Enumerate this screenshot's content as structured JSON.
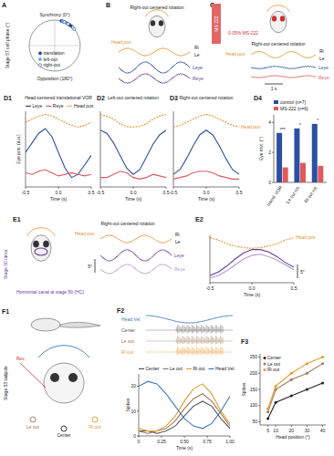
{
  "panel_labels": [
    "A",
    "B",
    "C",
    "D1",
    "D2",
    "D3",
    "D4",
    "E1",
    "E2",
    "F1",
    "F2",
    "F3"
  ],
  "A": {
    "side_label": "Stage 57 cell phase (°)",
    "top": "Synchrony (0°)",
    "bottom": "Opposition (180°)"
  },
  "B": {
    "title": "Right-out centered rotation",
    "head": "Head pos",
    "ri": "Ri",
    "le": "Le",
    "leye": "Leye",
    "reye": "Reye"
  },
  "C": {
    "tag": "MS 222",
    "dose": "0.05% MS-222",
    "title": "Right-out centered rotation",
    "head": "Head pos",
    "ri": "Ri",
    "le": "Le",
    "leye": "Leye",
    "reye": "Reye",
    "scale": "1 s"
  },
  "E": {
    "side_label": "Stage 50 larva",
    "canal": "Horizontal canal at stage 50 (HC)",
    "title": "Right-out centered rotation",
    "head": "Head pos",
    "ri": "Ri",
    "le": "Le",
    "leye": "Leye",
    "reye": "Reye",
    "scale": "5°"
  },
  "F": {
    "side_label": "Stage 53 tadpole",
    "le": "Le out",
    "center": "Center",
    "ri": "Ri out",
    "rec": "Rec",
    "raw_labels": [
      "Head Vel.",
      "Center",
      "Le out",
      "Ri out"
    ]
  },
  "chart_data": [
    {
      "type": "polar",
      "legend": "bottom-left",
      "series": [
        {
          "name": "translation",
          "color": "#1f3f8f",
          "marker": "circle",
          "values": [
            15,
            20,
            28,
            35,
            40
          ]
        },
        {
          "name": "left-out",
          "color": "#6fa8dc",
          "marker": "circle",
          "values": [
            18,
            25,
            31
          ]
        },
        {
          "name": "right-out",
          "color": "#1f3f8f",
          "marker": "ring",
          "values": [
            22,
            32,
            45,
            50
          ]
        }
      ]
    },
    {
      "type": "line",
      "title": "Head-centered translational VOR",
      "x_label": "Time (s)",
      "y_label": "Eye pos. (a.u.)",
      "legend": "top",
      "tick_labels": "x",
      "x": [
        -0.5,
        -0.4,
        -0.3,
        -0.2,
        -0.1,
        0,
        0.1,
        0.2,
        0.3,
        0.4,
        0.5
      ],
      "xlim": [
        -0.5,
        0.5
      ],
      "xticks": [
        -0.5,
        {
          "value": 0,
          "label": "0.0"
        },
        0.5
      ],
      "ylim": [
        -1,
        1.4
      ],
      "series": [
        {
          "name": "Leye",
          "color": "#2c4ea3",
          "values": [
            0.1,
            0.4,
            0.7,
            0.85,
            0.6,
            0.1,
            -0.4,
            -0.7,
            -0.6,
            -0.3,
            0.0
          ]
        },
        {
          "name": "Reye",
          "color": "#e05a5a",
          "values": [
            -0.55,
            -0.6,
            -0.5,
            -0.45,
            -0.55,
            -0.65,
            -0.6,
            -0.55,
            -0.6,
            -0.65,
            -0.6
          ]
        },
        {
          "name": "Head pos",
          "color": "#e8912d",
          "line_style": "dashed",
          "values": [
            1.05,
            1.15,
            1.25,
            1.3,
            1.25,
            1.15,
            1.05,
            0.95,
            0.9,
            0.95,
            1.05
          ]
        }
      ]
    },
    {
      "type": "line",
      "title": "Left-out centered rotation",
      "x_label": "Time (s)",
      "tick_labels": "x",
      "x": [
        -0.5,
        -0.4,
        -0.3,
        -0.2,
        -0.1,
        0,
        0.1,
        0.2,
        0.3,
        0.4,
        0.5
      ],
      "xlim": [
        -0.5,
        0.5
      ],
      "xticks": [
        -0.5,
        {
          "value": 0,
          "label": "0.0"
        },
        0.5
      ],
      "ylim": [
        -1,
        1.4
      ],
      "series": [
        {
          "color": "#2c4ea3",
          "values": [
            0.8,
            0.7,
            0.4,
            0.0,
            -0.4,
            -0.6,
            -0.45,
            -0.05,
            0.35,
            0.65,
            0.8
          ]
        },
        {
          "color": "#e05a5a",
          "values": [
            -0.7,
            -0.7,
            -0.6,
            -0.5,
            -0.55,
            -0.7,
            -0.75,
            -0.7,
            -0.6,
            -0.65,
            -0.7
          ]
        },
        {
          "color": "#e8912d",
          "line_style": "dashed",
          "values": [
            1.3,
            1.25,
            1.15,
            1.0,
            0.92,
            0.9,
            0.92,
            1.0,
            1.15,
            1.25,
            1.3
          ]
        }
      ]
    },
    {
      "type": "line",
      "title": "Right-out centered rotation",
      "x_label": "Time (s)",
      "tick_labels": "x",
      "x": [
        -0.5,
        -0.4,
        -0.3,
        -0.2,
        -0.1,
        0,
        0.1,
        0.2,
        0.3,
        0.4,
        0.5
      ],
      "xlim": [
        -0.5,
        0.5
      ],
      "xticks": [
        -0.5,
        {
          "value": 0,
          "label": "0.0"
        },
        0.5
      ],
      "ylim": [
        -1,
        1.4
      ],
      "series": [
        {
          "color": "#2c4ea3",
          "values": [
            -0.6,
            -0.45,
            -0.1,
            0.3,
            0.65,
            0.8,
            0.65,
            0.3,
            -0.1,
            -0.45,
            -0.6
          ]
        },
        {
          "color": "#e05a5a",
          "values": [
            -0.75,
            -0.7,
            -0.65,
            -0.55,
            -0.5,
            -0.5,
            -0.55,
            -0.65,
            -0.7,
            -0.75,
            -0.75
          ]
        },
        {
          "name": "Head pos",
          "color": "#e8912d",
          "line_style": "dashed",
          "values": [
            0.9,
            0.95,
            1.05,
            1.15,
            1.25,
            1.3,
            1.25,
            1.15,
            1.05,
            0.95,
            0.9
          ]
        }
      ]
    },
    {
      "type": "bar",
      "y_label": "Eye mvt. (°)",
      "legend": "top",
      "categories": [
        "transl. VOR",
        "Le out rot.",
        "Ri out rot."
      ],
      "ylim": [
        0,
        4.5
      ],
      "yticks": [
        0,
        2,
        4
      ],
      "annotations": [
        "***",
        "*",
        "*"
      ],
      "series": [
        {
          "name": "control (n=7)",
          "color": "#2c4ea3",
          "values": [
            3.3,
            3.6,
            3.9
          ]
        },
        {
          "name": "MS-222 (n=6)",
          "color": "#e05a5a",
          "values": [
            1.0,
            1.3,
            1.1
          ]
        }
      ]
    },
    {
      "type": "line",
      "x_label": "Time (s)",
      "tick_labels": "x",
      "x": [
        -0.5,
        -0.4,
        -0.3,
        -0.2,
        -0.1,
        0,
        0.1,
        0.2,
        0.3,
        0.4,
        0.5
      ],
      "xlim": [
        -0.5,
        0.5
      ],
      "xticks": [
        -0.5,
        {
          "value": 0,
          "label": "0.0"
        },
        0.5
      ],
      "ylim": [
        -0.6,
        1.4
      ],
      "series": [
        {
          "color": "#6a3d9a",
          "values": [
            -0.3,
            -0.15,
            0.1,
            0.4,
            0.65,
            0.8,
            0.8,
            0.7,
            0.5,
            0.25,
            0.05
          ]
        },
        {
          "color": "#b49bd6",
          "values": [
            -0.4,
            -0.3,
            -0.1,
            0.15,
            0.4,
            0.55,
            0.6,
            0.5,
            0.35,
            0.15,
            -0.05
          ]
        },
        {
          "name": "Head pos",
          "color": "#e8912d",
          "line_style": "dashed",
          "values": [
            1.3,
            1.2,
            1.05,
            0.95,
            0.88,
            0.85,
            0.88,
            0.95,
            1.05,
            1.2,
            1.3
          ]
        }
      ]
    },
    {
      "type": "line",
      "x_label": "Time (s)",
      "y_label": "Spikes",
      "legend": "top",
      "x": [
        0,
        0.1,
        0.2,
        0.3,
        0.4,
        0.5,
        0.6,
        0.7,
        0.8,
        0.9,
        1.0
      ],
      "xlim": [
        0,
        1
      ],
      "xticks": [
        0,
        {
          "value": 0.25,
          "label": "0.25"
        },
        {
          "value": 0.5,
          "label": "0.50"
        },
        {
          "value": 0.75,
          "label": "0.75"
        },
        {
          "value": 1,
          "label": "1.00"
        }
      ],
      "ylim": [
        0,
        25
      ],
      "yticks": [
        0,
        10,
        20
      ],
      "series": [
        {
          "name": "Center",
          "color": "#555555",
          "values": [
            2,
            2,
            1,
            2,
            4,
            8,
            12,
            14,
            12,
            7,
            3
          ]
        },
        {
          "name": "Le out",
          "color": "#a0785a",
          "values": [
            2,
            1,
            2,
            3,
            6,
            11,
            15,
            17,
            14,
            9,
            4
          ]
        },
        {
          "name": "Ri out",
          "color": "#e69a2e",
          "values": [
            3,
            2,
            2,
            4,
            8,
            14,
            19,
            21,
            17,
            10,
            5
          ]
        },
        {
          "name": "Head Vel.",
          "color": "#3a78c3",
          "values": [
            20,
            22,
            21,
            17,
            12,
            7,
            4,
            3,
            5,
            10,
            16
          ]
        }
      ]
    },
    {
      "type": "line",
      "x_label": "Head position (°)",
      "y_label": "Spikes",
      "legend": "top-left",
      "x": [
        5,
        10,
        20,
        30,
        40
      ],
      "xlim": [
        0,
        42
      ],
      "xticks": [
        5,
        10,
        20,
        30,
        40
      ],
      "ylim": [
        40,
        260
      ],
      "yticks": [
        50,
        100,
        150,
        200,
        250
      ],
      "series": [
        {
          "name": "Center",
          "color": "#222222",
          "marker": "circle",
          "values": [
            60,
            110,
            130,
            150,
            170
          ]
        },
        {
          "name": "Le out",
          "color": "#a0785a",
          "marker": "circle",
          "values": [
            80,
            150,
            180,
            200,
            230
          ]
        },
        {
          "name": "Ri out",
          "color": "#e69a2e",
          "marker": "circle",
          "values": [
            90,
            160,
            200,
            230,
            250
          ]
        }
      ]
    }
  ]
}
